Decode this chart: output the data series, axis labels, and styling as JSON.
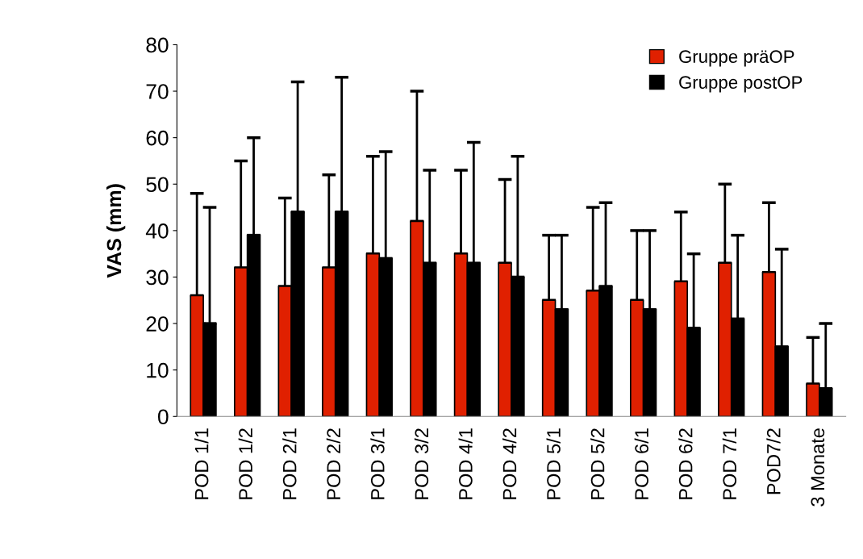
{
  "chart_data": {
    "type": "bar",
    "ylabel": "VAS (mm)",
    "categories": [
      "POD 1/1",
      "POD 1/2",
      "POD 2/1",
      "POD 2/2",
      "POD 3/1",
      "POD 3/2",
      "POD 4/1",
      "POD 4/2",
      "POD 5/1",
      "POD 5/2",
      "POD 6/1",
      "POD 6/2",
      "POD 7/1",
      "POD7/2",
      "3 Monate"
    ],
    "series": [
      {
        "name": "Gruppe präOP",
        "color": "#e02000",
        "values": [
          26,
          32,
          28,
          32,
          35,
          42,
          35,
          33,
          25,
          27,
          25,
          29,
          33,
          31,
          7
        ],
        "errors": [
          [
            26,
            48
          ],
          [
            32,
            55
          ],
          [
            28,
            47
          ],
          [
            32,
            52
          ],
          [
            35,
            56
          ],
          [
            42,
            70
          ],
          [
            35,
            53
          ],
          [
            33,
            51
          ],
          [
            25,
            39
          ],
          [
            27,
            45
          ],
          [
            25,
            40
          ],
          [
            29,
            44
          ],
          [
            33,
            50
          ],
          [
            31,
            46
          ],
          [
            7,
            17
          ]
        ]
      },
      {
        "name": "Gruppe postOP",
        "color": "#000000",
        "values": [
          20,
          39,
          44,
          44,
          34,
          33,
          33,
          30,
          23,
          28,
          23,
          19,
          21,
          15,
          6
        ],
        "errors": [
          [
            20,
            45
          ],
          [
            39,
            60
          ],
          [
            44,
            72
          ],
          [
            44,
            73
          ],
          [
            34,
            57
          ],
          [
            33,
            53
          ],
          [
            33,
            59
          ],
          [
            30,
            56
          ],
          [
            23,
            39
          ],
          [
            28,
            46
          ],
          [
            23,
            40
          ],
          [
            19,
            35
          ],
          [
            21,
            39
          ],
          [
            15,
            36
          ],
          [
            6,
            20
          ]
        ]
      }
    ],
    "ylim": [
      0,
      80
    ],
    "yticks": [
      0,
      10,
      20,
      30,
      40,
      50,
      60,
      70,
      80
    ],
    "grid": false,
    "legend": "top right"
  }
}
